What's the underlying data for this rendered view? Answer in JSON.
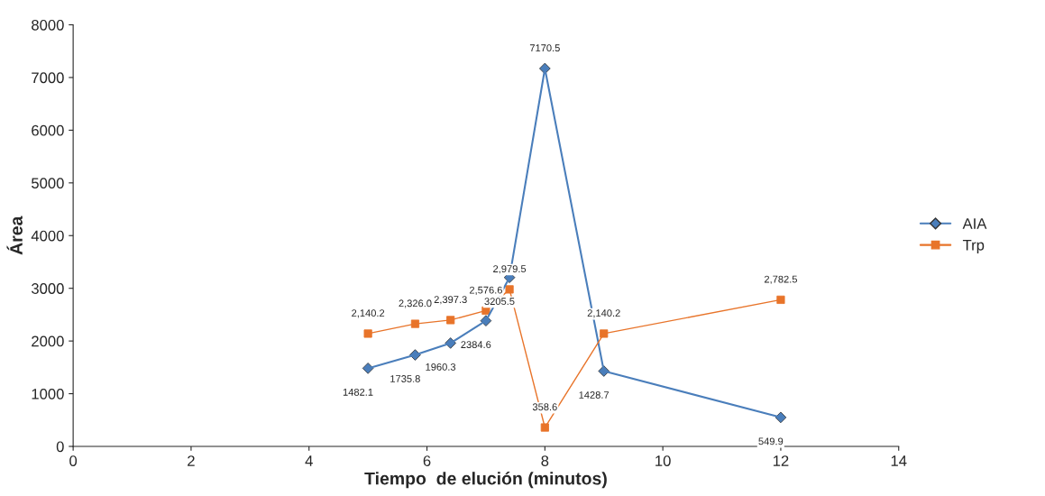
{
  "chart_data": {
    "type": "line",
    "xlabel": "Tiempo  de elución (minutos)",
    "ylabel": "Área",
    "xlim": [
      0,
      14
    ],
    "xticks": [
      0,
      2,
      4,
      6,
      8,
      10,
      12,
      14
    ],
    "ylim": [
      0,
      8000
    ],
    "yticks": [
      0,
      1000,
      2000,
      3000,
      4000,
      5000,
      6000,
      7000,
      8000
    ],
    "grid": false,
    "legend": "right",
    "series": [
      {
        "name": "AIA",
        "color": "#4a7ebb",
        "marker": "diamond",
        "x": [
          5,
          5.8,
          6.4,
          7,
          7.4,
          8,
          9,
          12
        ],
        "values": [
          1482.1,
          1735.8,
          1960.3,
          2384.6,
          3205.5,
          7170.5,
          1428.7,
          549.9
        ],
        "value_labels": [
          "1482.1",
          "1735.8",
          "1960.3",
          "2384.6",
          "3205.5",
          "7170.5",
          "1428.7",
          "549.9"
        ]
      },
      {
        "name": "Trp",
        "color": "#e8742a",
        "marker": "square",
        "x": [
          5,
          5.8,
          6.4,
          7,
          7.4,
          8,
          9,
          12
        ],
        "values": [
          2140.2,
          2326.0,
          2397.3,
          2576.6,
          2979.5,
          358.6,
          2140.2,
          2782.5
        ],
        "value_labels": [
          "2,140.2",
          "2,326.0",
          "2,397.3",
          "2,576.6",
          "2,979.5",
          "358.6",
          "2,140.2",
          "2,782.5"
        ]
      }
    ]
  }
}
